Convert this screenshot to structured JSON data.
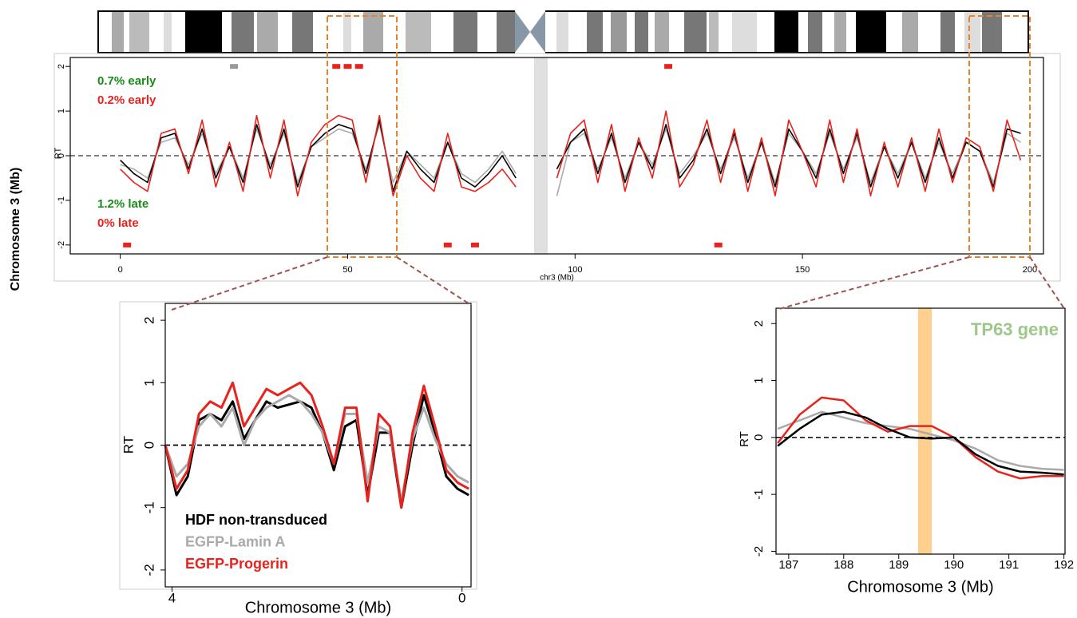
{
  "side_label": "Chromosome 3 (Mb)",
  "chart_data": [
    {
      "type": "line",
      "x_label": "chr3 (Mb)",
      "y_label": "RT",
      "xlim": [
        -11,
        203
      ],
      "ylim": [
        -2.2,
        2.2
      ],
      "xticks": [
        0,
        50,
        100,
        150,
        200
      ],
      "yticks": [
        -2,
        -1,
        0,
        1,
        2
      ],
      "reference_line": 0,
      "shaded_region": [
        91,
        94
      ],
      "annotations": [
        {
          "text": "0.7% early",
          "color": "#1a8a1a"
        },
        {
          "text": "0.2% early",
          "color": "#e8231d"
        },
        {
          "text": "1.2% late",
          "color": "#1a8a1a"
        },
        {
          "text": "0% late",
          "color": "#e8231d"
        }
      ],
      "markers": [
        {
          "x": 25,
          "y": 2,
          "color": "#999999"
        },
        {
          "x": 47.5,
          "y": 2,
          "color": "#e8231d"
        },
        {
          "x": 50,
          "y": 2,
          "color": "#e8231d"
        },
        {
          "x": 52.5,
          "y": 2,
          "color": "#e8231d"
        },
        {
          "x": 120.5,
          "y": 2,
          "color": "#e8231d"
        },
        {
          "x": 1.5,
          "y": -2,
          "color": "#e8231d"
        },
        {
          "x": 72,
          "y": -2,
          "color": "#e8231d"
        },
        {
          "x": 78,
          "y": -2,
          "color": "#e8231d"
        },
        {
          "x": 131.5,
          "y": -2,
          "color": "#e8231d"
        }
      ],
      "x": [
        0,
        3,
        6,
        9,
        12,
        15,
        18,
        21,
        24,
        27,
        30,
        33,
        36,
        39,
        42,
        45,
        48,
        51,
        54,
        57,
        60,
        63,
        66,
        69,
        72,
        75,
        78,
        81,
        84,
        87,
        90,
        93,
        96,
        99,
        102,
        105,
        108,
        111,
        114,
        117,
        120,
        123,
        126,
        129,
        132,
        135,
        138,
        141,
        144,
        147,
        150,
        153,
        156,
        159,
        162,
        165,
        168,
        171,
        174,
        177,
        180,
        183,
        186,
        189,
        192,
        195,
        198
      ],
      "series": [
        {
          "color": "#aaaaaa",
          "values": [
            -0.2,
            -0.3,
            -0.5,
            0.3,
            0.4,
            -0.2,
            0.5,
            -0.4,
            0.2,
            -0.5,
            0.6,
            -0.2,
            0.5,
            -0.6,
            0.2,
            0.4,
            0.6,
            0.5,
            -0.3,
            0.7,
            -0.6,
            0.1,
            -0.2,
            -0.5,
            0.3,
            -0.4,
            -0.6,
            -0.3,
            0.1,
            -0.4,
            null,
            null,
            -0.9,
            0.3,
            0.5,
            -0.3,
            0.4,
            -0.5,
            0.3,
            -0.2,
            0.6,
            -0.4,
            0.0,
            0.5,
            -0.3,
            0.4,
            -0.5,
            0.3,
            -0.6,
            0.5,
            0.1,
            -0.4,
            0.5,
            -0.3,
            0.4,
            -0.6,
            0.2,
            -0.4,
            0.3,
            -0.5,
            0.3,
            -0.4,
            0.3,
            0.1,
            -0.6,
            0.5,
            0.3
          ]
        },
        {
          "color": "#000000",
          "values": [
            -0.1,
            -0.4,
            -0.6,
            0.4,
            0.5,
            -0.3,
            0.6,
            -0.5,
            0.2,
            -0.6,
            0.7,
            -0.3,
            0.6,
            -0.7,
            0.2,
            0.5,
            0.7,
            0.6,
            -0.4,
            0.8,
            -0.8,
            0.1,
            -0.3,
            -0.6,
            0.3,
            -0.5,
            -0.7,
            -0.4,
            0.0,
            -0.5,
            null,
            null,
            -0.3,
            0.3,
            0.6,
            -0.4,
            0.5,
            -0.6,
            0.3,
            -0.3,
            0.7,
            -0.5,
            -0.1,
            0.6,
            -0.4,
            0.5,
            -0.6,
            0.3,
            -0.7,
            0.6,
            0.1,
            -0.5,
            0.6,
            -0.4,
            0.5,
            -0.7,
            0.2,
            -0.5,
            0.3,
            -0.6,
            0.4,
            -0.5,
            0.3,
            0.1,
            -0.7,
            0.6,
            0.5
          ]
        },
        {
          "color": "#e8231d",
          "values": [
            -0.3,
            -0.6,
            -0.8,
            0.5,
            0.6,
            -0.4,
            0.8,
            -0.7,
            0.3,
            -0.8,
            0.9,
            -0.5,
            0.8,
            -0.9,
            0.3,
            0.7,
            0.9,
            0.8,
            -0.6,
            0.9,
            -0.9,
            0.0,
            -0.5,
            -0.8,
            0.5,
            -0.7,
            -0.8,
            -0.6,
            -0.3,
            -0.7,
            null,
            null,
            -0.5,
            0.5,
            0.8,
            -0.6,
            0.7,
            -0.8,
            0.4,
            -0.5,
            1.0,
            -0.7,
            -0.2,
            0.8,
            -0.6,
            0.6,
            -0.8,
            0.4,
            -0.9,
            0.8,
            0.1,
            -0.7,
            0.8,
            -0.6,
            0.6,
            -0.9,
            0.3,
            -0.7,
            0.4,
            -0.8,
            0.6,
            -0.6,
            0.4,
            0.2,
            -0.8,
            0.8,
            -0.1
          ]
        }
      ]
    },
    {
      "type": "line",
      "x_label": "Chromosome 3 (Mb)",
      "y_label": "RT",
      "xlim": [
        46,
        59.6
      ],
      "ylim": [
        -2.27,
        2.27
      ],
      "xticks": [
        {
          "value": 46.3,
          "label": "4"
        },
        {
          "value": 59.2,
          "label": "0"
        }
      ],
      "yticks": [
        -2,
        -1,
        0,
        1,
        2
      ],
      "reference_line": 0,
      "x": [
        46,
        46.5,
        47,
        47.5,
        48,
        48.5,
        49,
        49.5,
        50,
        50.5,
        51,
        51.5,
        52,
        52.5,
        53,
        53.5,
        54,
        54.5,
        55,
        55.5,
        56,
        56.5,
        57,
        57.5,
        58,
        58.5,
        59,
        59.5
      ],
      "series": [
        {
          "name": "HDF non-transduced",
          "color": "#000000",
          "values": [
            0.0,
            -0.8,
            -0.5,
            0.4,
            0.5,
            0.4,
            0.7,
            0.1,
            0.4,
            0.7,
            0.6,
            0.65,
            0.7,
            0.6,
            0.2,
            -0.4,
            0.3,
            0.4,
            -0.8,
            0.2,
            0.2,
            -1.0,
            0.0,
            0.8,
            0.2,
            -0.5,
            -0.7,
            -0.8
          ]
        },
        {
          "name": "EGFP-Lamin A",
          "color": "#aaaaaa",
          "values": [
            0.0,
            -0.5,
            -0.3,
            0.3,
            0.5,
            0.3,
            0.6,
            0.0,
            0.4,
            0.6,
            0.7,
            0.8,
            0.7,
            0.5,
            0.2,
            -0.3,
            0.5,
            0.5,
            -0.6,
            0.3,
            0.2,
            -0.9,
            0.1,
            0.6,
            0.1,
            -0.3,
            -0.5,
            -0.6
          ]
        },
        {
          "name": "EGFP-Progerin",
          "color": "#e8231d",
          "values": [
            0.0,
            -0.7,
            -0.4,
            0.5,
            0.7,
            0.6,
            1.0,
            0.3,
            0.6,
            0.9,
            0.8,
            0.9,
            1.0,
            0.8,
            0.3,
            -0.3,
            0.6,
            0.6,
            -0.9,
            0.5,
            0.3,
            -1.0,
            0.2,
            0.95,
            0.3,
            -0.4,
            -0.6,
            -0.7
          ]
        }
      ]
    },
    {
      "type": "line",
      "x_label": "Chromosome 3 (Mb)",
      "y_label": "RT",
      "xlim": [
        186.77,
        192.02
      ],
      "ylim": [
        -2.05,
        2.27
      ],
      "xticks": [
        187,
        188,
        189,
        190,
        191,
        192
      ],
      "yticks": [
        -2,
        -1,
        0,
        1,
        2
      ],
      "reference_line": 0,
      "highlight": [
        189.35,
        189.6
      ],
      "annotation": "TP63 gene",
      "annotation_color": "#9cc98a",
      "highlight_color": "#fdd08f",
      "x": [
        186.8,
        187.2,
        187.6,
        188.0,
        188.4,
        188.8,
        189.2,
        189.6,
        190.0,
        190.4,
        190.8,
        191.2,
        191.6,
        192.0
      ],
      "series": [
        {
          "color": "#aaaaaa",
          "values": [
            0.15,
            0.3,
            0.45,
            0.35,
            0.25,
            0.2,
            0.15,
            0.05,
            -0.05,
            -0.2,
            -0.4,
            -0.5,
            -0.55,
            -0.57
          ]
        },
        {
          "color": "#e8231d",
          "values": [
            -0.1,
            0.4,
            0.7,
            0.65,
            0.3,
            0.1,
            0.2,
            0.2,
            0.0,
            -0.35,
            -0.6,
            -0.72,
            -0.68,
            -0.68
          ]
        },
        {
          "color": "#000000",
          "values": [
            -0.15,
            0.15,
            0.4,
            0.45,
            0.35,
            0.15,
            0.0,
            -0.02,
            0.0,
            -0.3,
            -0.5,
            -0.6,
            -0.62,
            -0.65
          ]
        }
      ]
    }
  ]
}
